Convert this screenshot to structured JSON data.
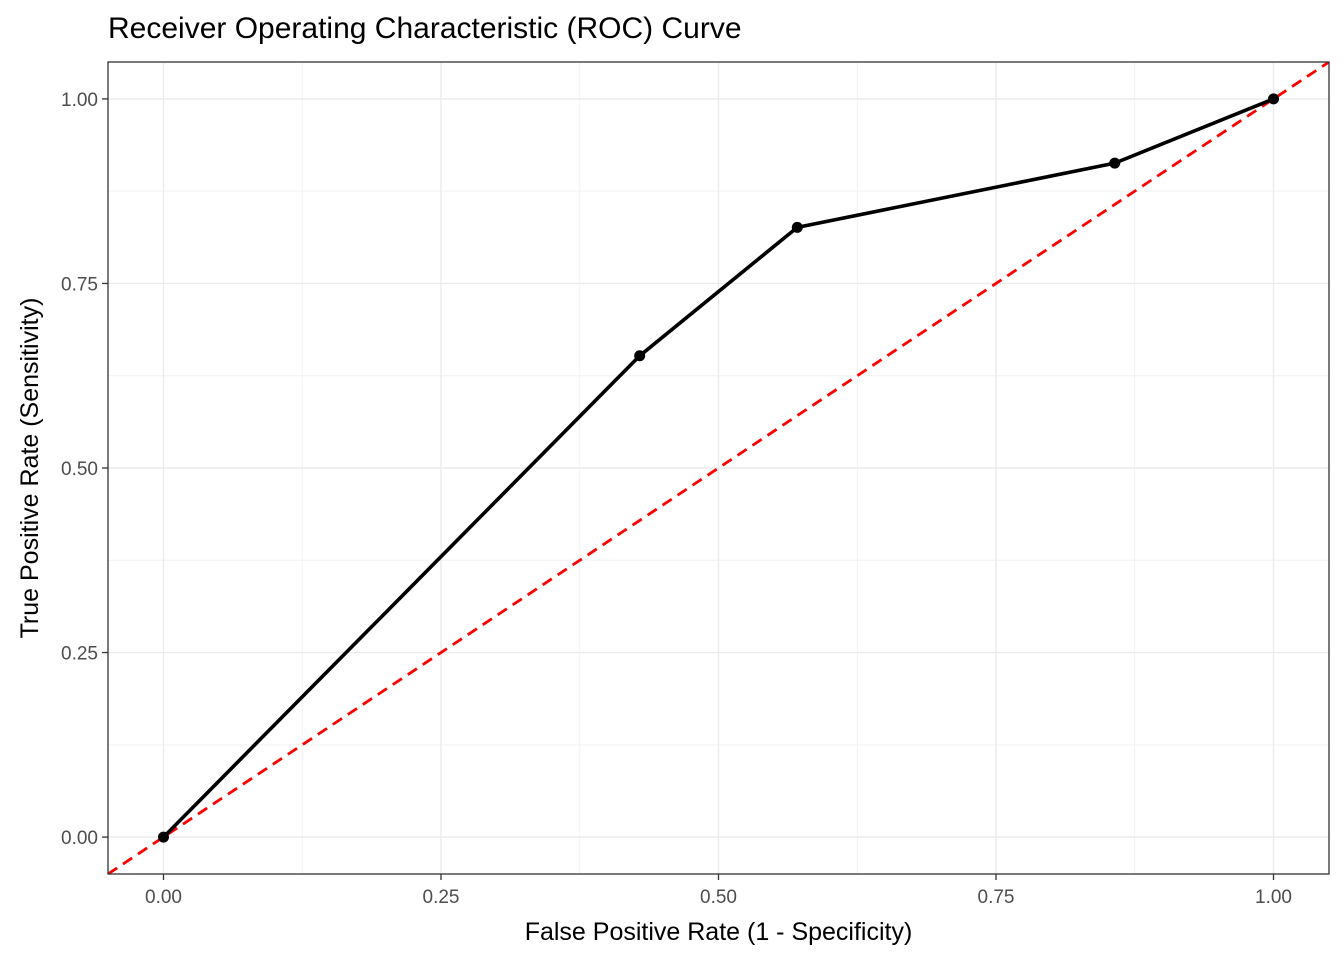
{
  "chart_data": {
    "type": "line",
    "title": "Receiver Operating Characteristic (ROC) Curve",
    "xlabel": "False Positive Rate (1 - Specificity)",
    "ylabel": "True Positive Rate (Sensitivity)",
    "xlim": [
      -0.05,
      1.05
    ],
    "ylim": [
      -0.05,
      1.05
    ],
    "x_ticks": [
      0,
      0.25,
      0.5,
      0.75,
      1
    ],
    "x_tick_labels": [
      "0.00",
      "0.25",
      "0.50",
      "0.75",
      "1.00"
    ],
    "y_ticks": [
      0,
      0.25,
      0.5,
      0.75,
      1
    ],
    "y_tick_labels": [
      "0.00",
      "0.25",
      "0.50",
      "0.75",
      "1.00"
    ],
    "grid": true,
    "series": [
      {
        "x": [
          0.0,
          0.429,
          0.571,
          0.857,
          1.0
        ],
        "y": [
          0.0,
          0.652,
          0.826,
          0.913,
          1.0
        ],
        "color": "#000000",
        "markers": true
      }
    ],
    "reference_line": {
      "slope": 1,
      "intercept": 0,
      "color": "#ff0000",
      "style": "dashed"
    }
  }
}
